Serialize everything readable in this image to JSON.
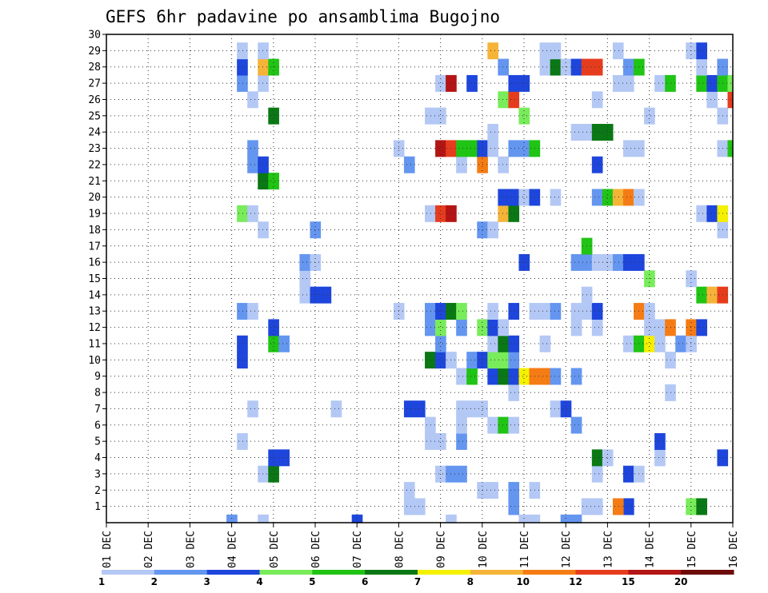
{
  "chart_data": {
    "type": "heatmap",
    "title": "GEFS 6hr padavine po ansamblima Bugojno",
    "x_tick_labels": [
      "01 DEC",
      "02 DEC",
      "03 DEC",
      "04 DEC",
      "05 DEC",
      "06 DEC",
      "07 DEC",
      "08 DEC",
      "09 DEC",
      "10 DEC",
      "11 DEC",
      "12 DEC",
      "13 DEC",
      "14 DEC",
      "15 DEC",
      "16 DEC"
    ],
    "y_tick_labels": [
      "1",
      "2",
      "3",
      "4",
      "5",
      "6",
      "7",
      "8",
      "9",
      "10",
      "11",
      "12",
      "13",
      "14",
      "15",
      "16",
      "17",
      "18",
      "19",
      "20",
      "21",
      "22",
      "23",
      "24",
      "25",
      "26",
      "27",
      "28",
      "29",
      "30"
    ],
    "x_steps_per_day": 4,
    "x_steps_total": 60,
    "y_range": [
      0,
      30
    ],
    "grid": true,
    "colorbar": {
      "labels": [
        "1",
        "2",
        "3",
        "4",
        "5",
        "6",
        "7",
        "8",
        "10",
        "12",
        "15",
        "20"
      ],
      "colors": [
        "#b4c8f5",
        "#6496f0",
        "#1e46dc",
        "#78ec5a",
        "#20c414",
        "#0a7814",
        "#f5f000",
        "#f5b438",
        "#f57c14",
        "#e63c1e",
        "#b41414",
        "#6e0a0a"
      ]
    },
    "cells": [
      [
        45,
        0,
        2
      ],
      [
        44,
        0,
        2
      ],
      [
        41,
        0,
        1
      ],
      [
        40,
        0,
        1
      ],
      [
        33,
        0,
        1
      ],
      [
        24,
        0,
        3
      ],
      [
        15,
        0,
        1
      ],
      [
        12,
        0,
        2
      ],
      [
        29,
        1,
        1
      ],
      [
        30,
        1,
        1
      ],
      [
        39,
        1,
        2
      ],
      [
        46,
        1,
        1
      ],
      [
        47,
        1,
        1
      ],
      [
        50,
        1,
        3
      ],
      [
        56,
        1,
        4
      ],
      [
        49,
        1,
        9
      ],
      [
        57,
        1,
        6
      ],
      [
        29,
        2,
        1
      ],
      [
        36,
        2,
        1
      ],
      [
        37,
        2,
        1
      ],
      [
        39,
        2,
        2
      ],
      [
        41,
        2,
        1
      ],
      [
        15,
        3,
        1
      ],
      [
        16,
        3,
        6
      ],
      [
        32,
        3,
        1
      ],
      [
        33,
        3,
        2
      ],
      [
        34,
        3,
        2
      ],
      [
        47,
        3,
        1
      ],
      [
        50,
        3,
        3
      ],
      [
        51,
        3,
        1
      ],
      [
        16,
        4,
        3
      ],
      [
        17,
        4,
        3
      ],
      [
        47,
        4,
        6
      ],
      [
        48,
        4,
        1
      ],
      [
        53,
        4,
        1
      ],
      [
        59,
        4,
        3
      ],
      [
        13,
        5,
        1
      ],
      [
        31,
        5,
        1
      ],
      [
        32,
        5,
        1
      ],
      [
        34,
        5,
        2
      ],
      [
        53,
        5,
        3
      ],
      [
        31,
        6,
        1
      ],
      [
        34,
        6,
        1
      ],
      [
        37,
        6,
        1
      ],
      [
        38,
        6,
        5
      ],
      [
        39,
        6,
        1
      ],
      [
        45,
        6,
        2
      ],
      [
        14,
        7,
        1
      ],
      [
        22,
        7,
        1
      ],
      [
        29,
        7,
        3
      ],
      [
        30,
        7,
        3
      ],
      [
        34,
        7,
        1
      ],
      [
        35,
        7,
        1
      ],
      [
        36,
        7,
        1
      ],
      [
        43,
        7,
        1
      ],
      [
        44,
        7,
        3
      ],
      [
        39,
        8,
        1
      ],
      [
        54,
        8,
        1
      ],
      [
        34,
        9,
        1
      ],
      [
        35,
        9,
        5
      ],
      [
        37,
        9,
        3
      ],
      [
        38,
        9,
        6
      ],
      [
        39,
        9,
        3
      ],
      [
        40,
        9,
        7
      ],
      [
        41,
        9,
        9
      ],
      [
        42,
        9,
        9
      ],
      [
        43,
        9,
        2
      ],
      [
        45,
        9,
        2
      ],
      [
        13,
        10,
        3
      ],
      [
        31,
        10,
        6
      ],
      [
        32,
        10,
        3
      ],
      [
        33,
        10,
        1
      ],
      [
        35,
        10,
        2
      ],
      [
        36,
        10,
        3
      ],
      [
        37,
        10,
        4
      ],
      [
        38,
        10,
        4
      ],
      [
        39,
        10,
        2
      ],
      [
        54,
        10,
        1
      ],
      [
        13,
        11,
        3
      ],
      [
        16,
        11,
        5
      ],
      [
        17,
        11,
        2
      ],
      [
        32,
        11,
        2
      ],
      [
        37,
        11,
        1
      ],
      [
        38,
        11,
        6
      ],
      [
        39,
        11,
        3
      ],
      [
        42,
        11,
        1
      ],
      [
        50,
        11,
        1
      ],
      [
        51,
        11,
        5
      ],
      [
        52,
        11,
        7
      ],
      [
        53,
        11,
        1
      ],
      [
        55,
        11,
        2
      ],
      [
        56,
        11,
        1
      ],
      [
        16,
        12,
        3
      ],
      [
        31,
        12,
        2
      ],
      [
        32,
        12,
        4
      ],
      [
        34,
        12,
        2
      ],
      [
        36,
        12,
        4
      ],
      [
        37,
        12,
        3
      ],
      [
        38,
        12,
        1
      ],
      [
        45,
        12,
        1
      ],
      [
        47,
        12,
        1
      ],
      [
        52,
        12,
        1
      ],
      [
        53,
        12,
        1
      ],
      [
        54,
        12,
        9
      ],
      [
        56,
        12,
        9
      ],
      [
        57,
        12,
        3
      ],
      [
        13,
        13,
        2
      ],
      [
        14,
        13,
        1
      ],
      [
        28,
        13,
        1
      ],
      [
        31,
        13,
        2
      ],
      [
        32,
        13,
        3
      ],
      [
        33,
        13,
        6
      ],
      [
        34,
        13,
        4
      ],
      [
        37,
        13,
        1
      ],
      [
        39,
        13,
        3
      ],
      [
        41,
        13,
        1
      ],
      [
        42,
        13,
        1
      ],
      [
        43,
        13,
        2
      ],
      [
        45,
        13,
        1
      ],
      [
        46,
        13,
        1
      ],
      [
        47,
        13,
        3
      ],
      [
        51,
        13,
        9
      ],
      [
        52,
        13,
        1
      ],
      [
        19,
        14,
        1
      ],
      [
        20,
        14,
        3
      ],
      [
        21,
        14,
        3
      ],
      [
        46,
        14,
        1
      ],
      [
        57,
        14,
        5
      ],
      [
        58,
        14,
        8
      ],
      [
        59,
        14,
        10
      ],
      [
        19,
        15,
        1
      ],
      [
        52,
        15,
        4
      ],
      [
        56,
        15,
        1
      ],
      [
        19,
        16,
        2
      ],
      [
        20,
        16,
        1
      ],
      [
        40,
        16,
        3
      ],
      [
        45,
        16,
        2
      ],
      [
        46,
        16,
        2
      ],
      [
        47,
        16,
        1
      ],
      [
        48,
        16,
        1
      ],
      [
        49,
        16,
        2
      ],
      [
        50,
        16,
        3
      ],
      [
        51,
        16,
        3
      ],
      [
        46,
        17,
        5
      ],
      [
        15,
        18,
        1
      ],
      [
        20,
        18,
        2
      ],
      [
        36,
        18,
        2
      ],
      [
        37,
        18,
        1
      ],
      [
        59,
        18,
        1
      ],
      [
        13,
        19,
        4
      ],
      [
        14,
        19,
        1
      ],
      [
        31,
        19,
        1
      ],
      [
        32,
        19,
        10
      ],
      [
        33,
        19,
        11
      ],
      [
        38,
        19,
        8
      ],
      [
        39,
        19,
        6
      ],
      [
        57,
        19,
        1
      ],
      [
        58,
        19,
        3
      ],
      [
        59,
        19,
        7
      ],
      [
        38,
        20,
        3
      ],
      [
        39,
        20,
        3
      ],
      [
        40,
        20,
        1
      ],
      [
        41,
        20,
        3
      ],
      [
        43,
        20,
        1
      ],
      [
        47,
        20,
        2
      ],
      [
        48,
        20,
        5
      ],
      [
        49,
        20,
        8
      ],
      [
        50,
        20,
        9
      ],
      [
        51,
        20,
        1
      ],
      [
        15,
        21,
        6
      ],
      [
        16,
        21,
        5
      ],
      [
        14,
        22,
        2
      ],
      [
        15,
        22,
        3
      ],
      [
        29,
        22,
        2
      ],
      [
        34,
        22,
        1
      ],
      [
        36,
        22,
        9
      ],
      [
        38,
        22,
        1
      ],
      [
        47,
        22,
        3
      ],
      [
        14,
        23,
        2
      ],
      [
        28,
        23,
        1
      ],
      [
        32,
        23,
        11
      ],
      [
        33,
        23,
        10
      ],
      [
        34,
        23,
        5
      ],
      [
        35,
        23,
        5
      ],
      [
        36,
        23,
        3
      ],
      [
        37,
        23,
        1
      ],
      [
        39,
        23,
        2
      ],
      [
        40,
        23,
        2
      ],
      [
        41,
        23,
        5
      ],
      [
        50,
        23,
        1
      ],
      [
        51,
        23,
        1
      ],
      [
        59,
        23,
        1
      ],
      [
        60,
        23,
        5
      ],
      [
        37,
        24,
        1
      ],
      [
        45,
        24,
        1
      ],
      [
        46,
        24,
        1
      ],
      [
        47,
        24,
        6
      ],
      [
        48,
        24,
        6
      ],
      [
        16,
        25,
        6
      ],
      [
        31,
        25,
        1
      ],
      [
        32,
        25,
        1
      ],
      [
        40,
        25,
        4
      ],
      [
        52,
        25,
        1
      ],
      [
        59,
        25,
        1
      ],
      [
        14,
        26,
        1
      ],
      [
        38,
        26,
        4
      ],
      [
        39,
        26,
        10
      ],
      [
        47,
        26,
        1
      ],
      [
        58,
        26,
        1
      ],
      [
        60,
        26,
        10
      ],
      [
        13,
        27,
        2
      ],
      [
        15,
        27,
        1
      ],
      [
        32,
        27,
        1
      ],
      [
        33,
        27,
        11
      ],
      [
        35,
        27,
        3
      ],
      [
        39,
        27,
        3
      ],
      [
        40,
        27,
        3
      ],
      [
        49,
        27,
        1
      ],
      [
        50,
        27,
        1
      ],
      [
        53,
        27,
        1
      ],
      [
        54,
        27,
        5
      ],
      [
        57,
        27,
        5
      ],
      [
        58,
        27,
        3
      ],
      [
        59,
        27,
        5
      ],
      [
        60,
        27,
        4
      ],
      [
        13,
        28,
        3
      ],
      [
        15,
        28,
        8
      ],
      [
        16,
        28,
        5
      ],
      [
        38,
        28,
        2
      ],
      [
        42,
        28,
        1
      ],
      [
        43,
        28,
        6
      ],
      [
        44,
        28,
        1
      ],
      [
        45,
        28,
        3
      ],
      [
        46,
        28,
        10
      ],
      [
        47,
        28,
        10
      ],
      [
        50,
        28,
        2
      ],
      [
        51,
        28,
        5
      ],
      [
        57,
        28,
        1
      ],
      [
        59,
        28,
        2
      ],
      [
        13,
        29,
        1
      ],
      [
        15,
        29,
        1
      ],
      [
        37,
        29,
        8
      ],
      [
        42,
        29,
        1
      ],
      [
        43,
        29,
        1
      ],
      [
        49,
        29,
        1
      ],
      [
        56,
        29,
        1
      ],
      [
        57,
        29,
        3
      ]
    ]
  }
}
